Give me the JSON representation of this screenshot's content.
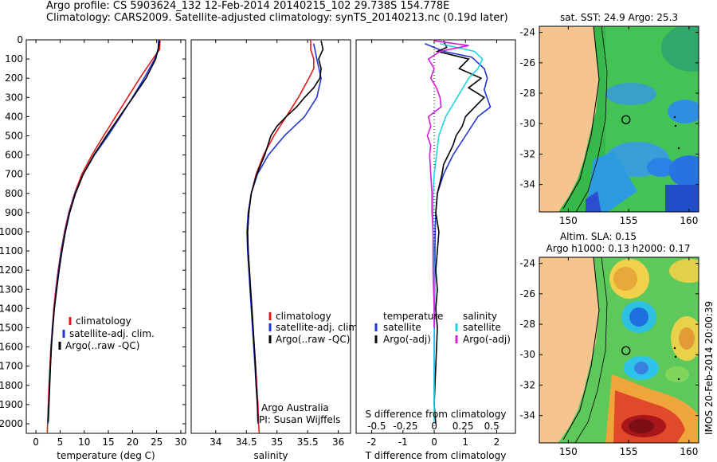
{
  "header": {
    "line1": "Argo profile: CS 5903624_132 12-Feb-2014 20140215_102 29.738S 154.778E",
    "line2": "Climatology: CARS2009. Satellite-adjusted climatology: synTS_20140213.nc (0.19d later)"
  },
  "colors": {
    "climatology": "#e41a1c",
    "satellite": "#1f35d6",
    "argo": "#000000",
    "satellite_s": "#22d3e0",
    "argo_s": "#d61cd6",
    "land": "#f6c48e"
  },
  "chart_data": [
    {
      "type": "line",
      "panel": "temperature",
      "xlabel": "temperature (deg C)",
      "xlim": [
        -2,
        31
      ],
      "xticks": [
        0,
        5,
        10,
        15,
        20,
        25,
        30
      ],
      "ylim": [
        2050,
        0
      ],
      "yticks": [
        0,
        100,
        200,
        300,
        400,
        500,
        600,
        700,
        800,
        900,
        1000,
        1100,
        1200,
        1300,
        1400,
        1500,
        1600,
        1700,
        1800,
        1900,
        2000
      ],
      "legend": [
        "climatology",
        "satellite-adj. clim.",
        "Argo(..raw -QC)"
      ],
      "series": [
        {
          "name": "climatology",
          "color": "#e41a1c",
          "points": [
            [
              25.7,
              0
            ],
            [
              25.6,
              50
            ],
            [
              24.2,
              100
            ],
            [
              21.5,
              200
            ],
            [
              19.0,
              300
            ],
            [
              16.5,
              400
            ],
            [
              14.0,
              500
            ],
            [
              11.6,
              600
            ],
            [
              9.5,
              700
            ],
            [
              8.0,
              800
            ],
            [
              6.8,
              900
            ],
            [
              5.9,
              1000
            ],
            [
              5.2,
              1100
            ],
            [
              4.6,
              1200
            ],
            [
              4.1,
              1300
            ],
            [
              3.7,
              1400
            ],
            [
              3.4,
              1500
            ],
            [
              3.1,
              1600
            ],
            [
              2.9,
              1700
            ],
            [
              2.7,
              1800
            ],
            [
              2.55,
              1900
            ],
            [
              2.4,
              2000
            ],
            [
              2.35,
              2050
            ]
          ]
        },
        {
          "name": "satellite-adj. clim.",
          "color": "#1f35d6",
          "points": [
            [
              25.4,
              0
            ],
            [
              25.3,
              50
            ],
            [
              24.6,
              100
            ],
            [
              22.4,
              200
            ],
            [
              20.0,
              300
            ],
            [
              17.5,
              400
            ],
            [
              14.9,
              500
            ],
            [
              12.1,
              600
            ],
            [
              9.8,
              700
            ],
            [
              8.1,
              800
            ],
            [
              6.9,
              900
            ],
            [
              6.0,
              1000
            ],
            [
              5.3,
              1100
            ],
            [
              4.7,
              1200
            ],
            [
              4.2,
              1300
            ],
            [
              3.8,
              1400
            ],
            [
              3.4,
              1500
            ],
            [
              3.2,
              1600
            ],
            [
              3.0,
              1700
            ],
            [
              2.8,
              1800
            ],
            [
              2.65,
              1900
            ],
            [
              2.5,
              2000
            ]
          ]
        },
        {
          "name": "Argo(..raw -QC)",
          "color": "#000000",
          "points": [
            [
              25.6,
              5
            ],
            [
              25.3,
              50
            ],
            [
              24.8,
              100
            ],
            [
              22.8,
              200
            ],
            [
              20.1,
              300
            ],
            [
              17.3,
              400
            ],
            [
              14.6,
              500
            ],
            [
              12.0,
              600
            ],
            [
              9.8,
              700
            ],
            [
              8.2,
              800
            ],
            [
              7.0,
              900
            ],
            [
              6.1,
              1000
            ],
            [
              5.4,
              1100
            ],
            [
              4.8,
              1200
            ],
            [
              4.3,
              1300
            ],
            [
              3.8,
              1400
            ],
            [
              3.5,
              1500
            ],
            [
              3.2,
              1600
            ],
            [
              3.0,
              1700
            ],
            [
              2.85,
              1800
            ],
            [
              2.7,
              1900
            ],
            [
              2.55,
              1990
            ]
          ]
        }
      ]
    },
    {
      "type": "line",
      "panel": "salinity",
      "xlabel": "salinity",
      "xlim": [
        33.6,
        36.2
      ],
      "xticks": [
        34,
        34.5,
        35,
        35.5,
        36
      ],
      "ylim": [
        2050,
        0
      ],
      "legend": [
        "climatology",
        "satellite-adj. clim.",
        "Argo(..raw -QC)"
      ],
      "annotation": [
        "Argo Australia",
        "PI: Susan Wijffels"
      ],
      "series": [
        {
          "name": "climatology",
          "color": "#e41a1c",
          "points": [
            [
              35.55,
              0
            ],
            [
              35.55,
              50
            ],
            [
              35.6,
              100
            ],
            [
              35.6,
              150
            ],
            [
              35.52,
              200
            ],
            [
              35.35,
              300
            ],
            [
              35.15,
              400
            ],
            [
              34.95,
              500
            ],
            [
              34.78,
              600
            ],
            [
              34.66,
              700
            ],
            [
              34.58,
              800
            ],
            [
              34.54,
              900
            ],
            [
              34.52,
              1000
            ],
            [
              34.53,
              1100
            ],
            [
              34.55,
              1200
            ],
            [
              34.57,
              1300
            ],
            [
              34.59,
              1400
            ],
            [
              34.61,
              1500
            ],
            [
              34.63,
              1600
            ],
            [
              34.65,
              1700
            ],
            [
              34.67,
              1800
            ],
            [
              34.69,
              1900
            ],
            [
              34.7,
              2000
            ],
            [
              34.71,
              2050
            ]
          ]
        },
        {
          "name": "satellite-adj. clim.",
          "color": "#1f35d6",
          "points": [
            [
              35.6,
              20
            ],
            [
              35.65,
              100
            ],
            [
              35.72,
              200
            ],
            [
              35.65,
              300
            ],
            [
              35.45,
              400
            ],
            [
              35.12,
              500
            ],
            [
              34.86,
              600
            ],
            [
              34.68,
              700
            ],
            [
              34.58,
              800
            ],
            [
              34.53,
              900
            ],
            [
              34.51,
              1000
            ],
            [
              34.52,
              1100
            ],
            [
              34.54,
              1200
            ],
            [
              34.56,
              1300
            ],
            [
              34.58,
              1400
            ],
            [
              34.6,
              1500
            ],
            [
              34.62,
              1600
            ],
            [
              34.64,
              1700
            ],
            [
              34.66,
              1800
            ],
            [
              34.68,
              1900
            ],
            [
              34.69,
              2000
            ]
          ]
        },
        {
          "name": "Argo(..raw -QC)",
          "color": "#000000",
          "points": [
            [
              35.72,
              5
            ],
            [
              35.75,
              50
            ],
            [
              35.68,
              100
            ],
            [
              35.72,
              150
            ],
            [
              35.7,
              200
            ],
            [
              35.6,
              250
            ],
            [
              35.45,
              300
            ],
            [
              35.32,
              350
            ],
            [
              35.15,
              400
            ],
            [
              35.0,
              450
            ],
            [
              34.9,
              500
            ],
            [
              34.8,
              600
            ],
            [
              34.67,
              700
            ],
            [
              34.58,
              800
            ],
            [
              34.54,
              900
            ],
            [
              34.52,
              1000
            ],
            [
              34.53,
              1100
            ],
            [
              34.55,
              1200
            ],
            [
              34.57,
              1300
            ],
            [
              34.59,
              1400
            ],
            [
              34.61,
              1500
            ],
            [
              34.63,
              1600
            ],
            [
              34.65,
              1700
            ],
            [
              34.66,
              1800
            ],
            [
              34.68,
              1900
            ],
            [
              34.69,
              1990
            ]
          ]
        }
      ]
    },
    {
      "type": "line",
      "panel": "difference",
      "xlabel": "T difference from climatology",
      "xlabel2": "S difference from climatology",
      "xlim": [
        -2.5,
        2.6
      ],
      "xticks": [
        -2,
        -1,
        0,
        1,
        2
      ],
      "s_ticks": [
        -0.5,
        -0.25,
        0,
        0.25,
        0.5
      ],
      "ylim": [
        2050,
        0
      ],
      "legend_temperature": [
        "temperature",
        "satellite",
        "Argo(-adj)"
      ],
      "legend_salinity": [
        "salinity",
        "satellite",
        "Argo(-adj)"
      ],
      "series": [
        {
          "name": "satellite",
          "color": "#1f35d6",
          "points": [
            [
              -0.3,
              20
            ],
            [
              0.3,
              60
            ],
            [
              1.2,
              90
            ],
            [
              1.6,
              150
            ],
            [
              1.7,
              200
            ],
            [
              1.6,
              260
            ],
            [
              1.8,
              350
            ],
            [
              1.4,
              400
            ],
            [
              1.0,
              500
            ],
            [
              0.6,
              600
            ],
            [
              0.3,
              700
            ],
            [
              0.1,
              800
            ],
            [
              0.05,
              900
            ],
            [
              0.03,
              1000
            ],
            [
              0.02,
              1200
            ],
            [
              0.01,
              1400
            ],
            [
              0.0,
              1600
            ],
            [
              0.0,
              1900
            ]
          ]
        },
        {
          "name": "Argo(-adj)",
          "color": "#000000",
          "points": [
            [
              0.3,
              5
            ],
            [
              0.4,
              40
            ],
            [
              0.1,
              60
            ],
            [
              1.1,
              100
            ],
            [
              0.8,
              150
            ],
            [
              1.5,
              200
            ],
            [
              1.1,
              250
            ],
            [
              1.6,
              300
            ],
            [
              1.3,
              350
            ],
            [
              1.0,
              400
            ],
            [
              0.9,
              450
            ],
            [
              0.7,
              500
            ],
            [
              0.6,
              550
            ],
            [
              0.45,
              600
            ],
            [
              0.3,
              650
            ],
            [
              0.25,
              700
            ],
            [
              0.1,
              800
            ],
            [
              0.05,
              900
            ],
            [
              0.15,
              1000
            ],
            [
              0.1,
              1100
            ],
            [
              0.05,
              1200
            ],
            [
              0.1,
              1300
            ],
            [
              0.05,
              1400
            ],
            [
              0.1,
              1500
            ],
            [
              0.05,
              1700
            ],
            [
              0.0,
              1900
            ],
            [
              0.05,
              2000
            ]
          ]
        },
        {
          "name": "satellite S",
          "color": "#22d3e0",
          "points": [
            [
              0.05,
              20
            ],
            [
              0.35,
              60
            ],
            [
              0.42,
              100
            ],
            [
              0.38,
              150
            ],
            [
              0.3,
              200
            ],
            [
              0.2,
              300
            ],
            [
              0.1,
              400
            ],
            [
              0.04,
              500
            ],
            [
              0.02,
              600
            ],
            [
              0.0,
              700
            ],
            [
              -0.01,
              800
            ],
            [
              -0.01,
              1000
            ],
            [
              0.0,
              1200
            ],
            [
              0.0,
              1400
            ],
            [
              0.0,
              1600
            ],
            [
              0.0,
              1800
            ],
            [
              0.0,
              1990
            ]
          ]
        },
        {
          "name": "Argo S",
          "color": "#d61cd6",
          "points": [
            [
              0.0,
              5
            ],
            [
              0.3,
              30
            ],
            [
              0.05,
              60
            ],
            [
              -0.05,
              100
            ],
            [
              0.0,
              150
            ],
            [
              -0.03,
              200
            ],
            [
              0.02,
              250
            ],
            [
              0.05,
              300
            ],
            [
              0.06,
              350
            ],
            [
              -0.05,
              400
            ],
            [
              -0.03,
              450
            ],
            [
              -0.06,
              500
            ],
            [
              -0.03,
              550
            ],
            [
              -0.04,
              600
            ],
            [
              -0.03,
              700
            ],
            [
              -0.02,
              800
            ],
            [
              -0.02,
              900
            ],
            [
              -0.01,
              1000
            ],
            [
              -0.01,
              1200
            ],
            [
              0.0,
              1400
            ],
            [
              0.0,
              1500
            ]
          ]
        }
      ]
    }
  ],
  "maps": {
    "top": {
      "title": "sat. SST: 24.9 Argo: 25.3",
      "xticks": [
        150,
        155,
        160
      ],
      "yticks": [
        -24,
        -26,
        -28,
        -30,
        -32,
        -34
      ]
    },
    "bottom": {
      "title1": "Altim. SLA: 0.15",
      "title2": "Argo h1000: 0.13 h2000: 0.17",
      "xticks": [
        150,
        155,
        160
      ],
      "yticks": [
        -24,
        -26,
        -28,
        -30,
        -32,
        -34
      ]
    },
    "argo_position": [
      154.778,
      -29.738
    ],
    "credit": "IMOS 20-Feb-2014 20:00:39"
  }
}
